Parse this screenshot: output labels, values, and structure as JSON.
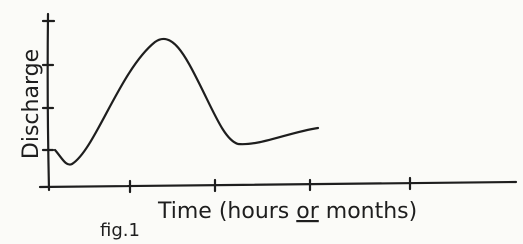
{
  "axis_labels": {
    "y": "Discharge",
    "x": {
      "before": "Time (hours ",
      "emphasis": "or",
      "after": " months)"
    }
  },
  "caption": "fig.1"
}
